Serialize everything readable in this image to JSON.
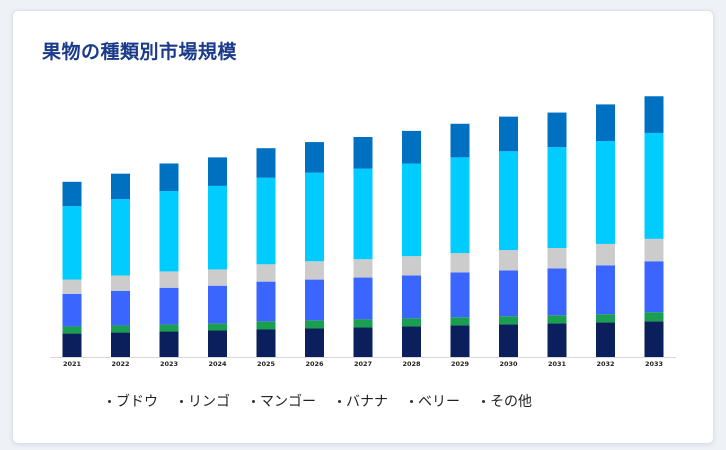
{
  "chart_data": {
    "type": "bar",
    "stacked": true,
    "title": "果物の種類別市場規模",
    "categories": [
      "2021",
      "2022",
      "2023",
      "2024",
      "2025",
      "2026",
      "2027",
      "2028",
      "2029",
      "2030",
      "2031",
      "2032",
      "2033"
    ],
    "series": [
      {
        "name": "ブドウ",
        "color": "#0a1f5c",
        "values": [
          23,
          24,
          25,
          26,
          27,
          28,
          29,
          30,
          31,
          32,
          33,
          34,
          35
        ]
      },
      {
        "name": "リンゴ",
        "color": "#1a9e4f",
        "values": [
          7,
          7,
          7,
          7,
          8,
          8,
          8,
          8,
          8,
          8,
          8,
          8,
          9
        ]
      },
      {
        "name": "マンゴー",
        "color": "#3a66ff",
        "values": [
          32,
          34,
          36,
          37,
          39,
          40,
          41,
          42,
          44,
          45,
          46,
          48,
          50
        ]
      },
      {
        "name": "バナナ",
        "color": "#cccccc",
        "values": [
          14,
          15,
          16,
          16,
          17,
          18,
          18,
          19,
          19,
          20,
          20,
          21,
          22
        ]
      },
      {
        "name": "ベリー",
        "color": "#00ccff",
        "values": [
          72,
          75,
          79,
          82,
          85,
          87,
          89,
          91,
          94,
          97,
          99,
          101,
          104
        ]
      },
      {
        "name": "その他",
        "color": "#0070c0",
        "values": [
          24,
          25,
          27,
          28,
          29,
          30,
          31,
          32,
          33,
          34,
          34,
          36,
          36
        ]
      }
    ],
    "ylim": [
      0,
      270
    ],
    "legend": "bottom",
    "grid": false
  }
}
